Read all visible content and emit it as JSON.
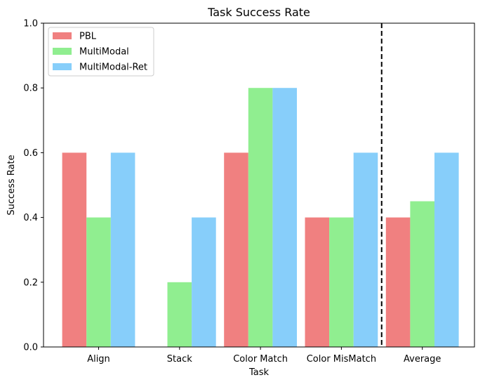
{
  "chart_data": {
    "type": "bar",
    "title": "Task Success Rate",
    "xlabel": "Task",
    "ylabel": "Success Rate",
    "categories": [
      "Align",
      "Stack",
      "Color Match",
      "Color MisMatch",
      "Average"
    ],
    "series": [
      {
        "name": "PBL",
        "color": "#f08080",
        "values": [
          0.6,
          0.0,
          0.6,
          0.4,
          0.4
        ]
      },
      {
        "name": "MultiModal",
        "color": "#90ee90",
        "values": [
          0.4,
          0.2,
          0.8,
          0.4,
          0.45
        ]
      },
      {
        "name": "MultiModal-Ret",
        "color": "#87cefa",
        "values": [
          0.6,
          0.4,
          0.8,
          0.6,
          0.6
        ]
      }
    ],
    "ylim": [
      0,
      1
    ],
    "yticks": [
      "0.0",
      "0.2",
      "0.4",
      "0.6",
      "0.8",
      "1.0"
    ],
    "grid": false,
    "legend_position": "top-left",
    "separator": {
      "type": "dashed-vertical-line",
      "between_categories": [
        "Color MisMatch",
        "Average"
      ]
    }
  }
}
